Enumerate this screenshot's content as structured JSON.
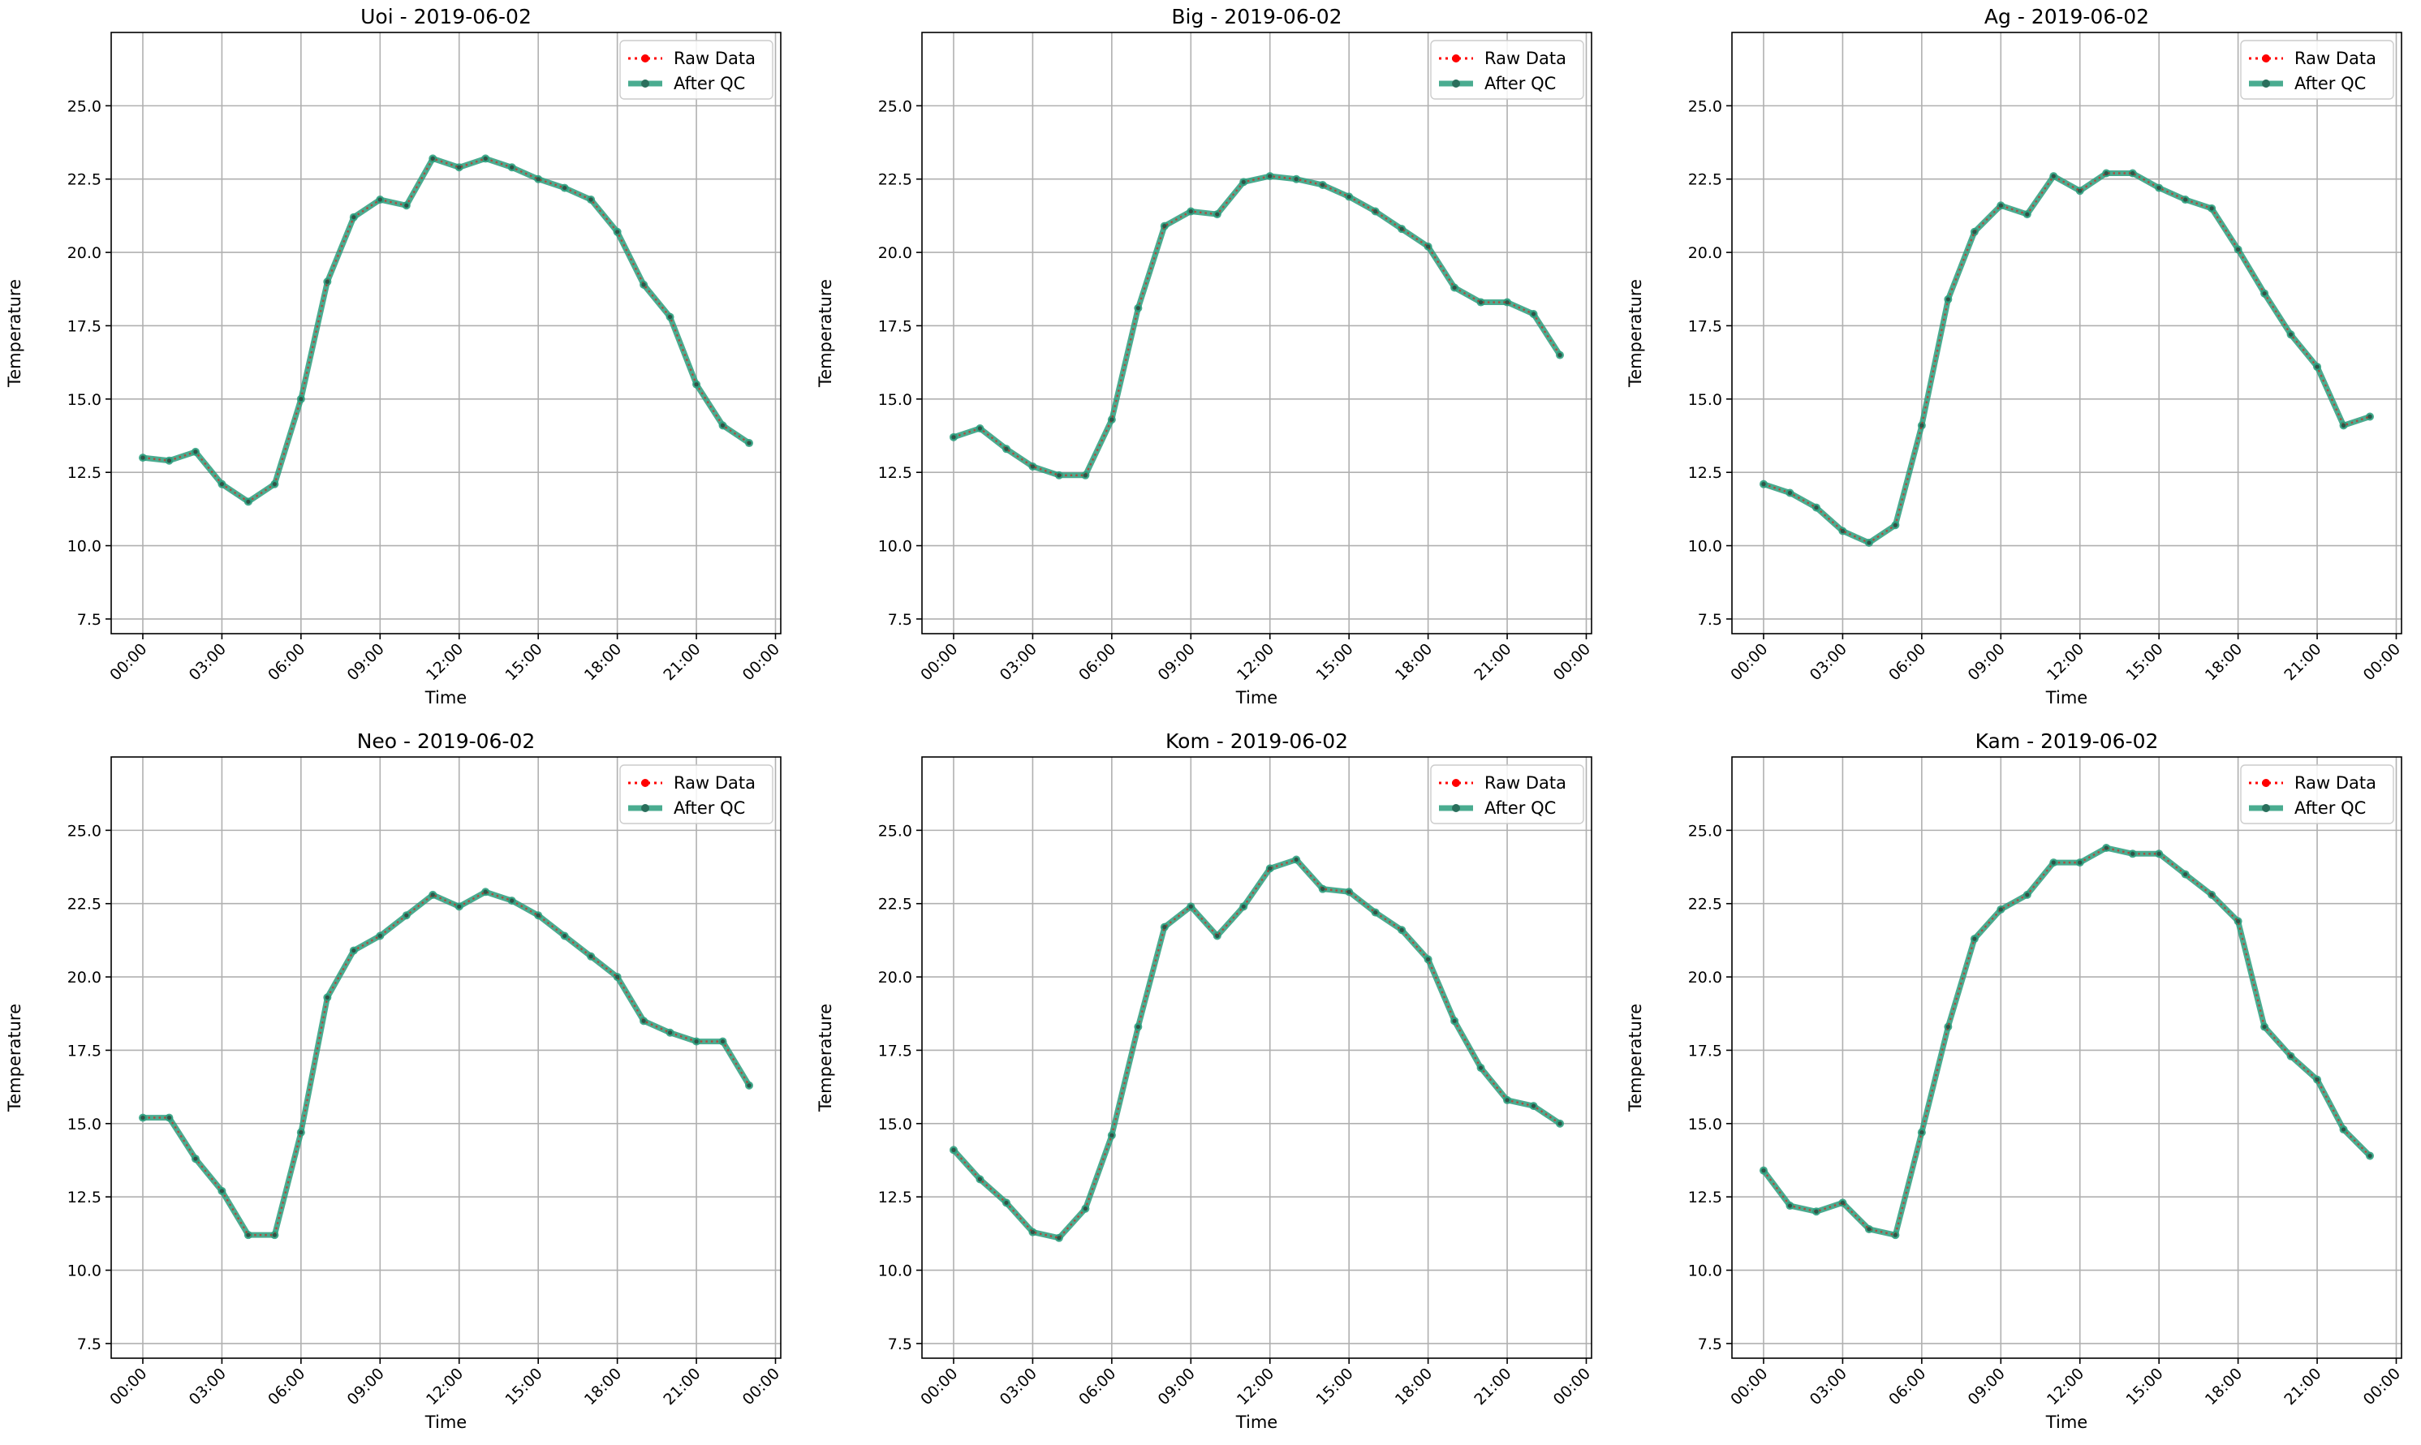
{
  "chart_data": [
    {
      "type": "line",
      "title": "Uoi - 2019-06-02",
      "xlabel": "Time",
      "ylabel": "Temperature",
      "ylim": [
        7,
        27.5
      ],
      "yticks": [
        7.5,
        10.0,
        12.5,
        15.0,
        17.5,
        20.0,
        22.5,
        25.0
      ],
      "ytick_labels": [
        "7.5",
        "10.0",
        "12.5",
        "15.0",
        "17.5",
        "20.0",
        "22.5",
        "25.0"
      ],
      "xlim_hours": [
        -1.2,
        24.2
      ],
      "xticks_hours": [
        0,
        3,
        6,
        9,
        12,
        15,
        18,
        21,
        24
      ],
      "xtick_labels": [
        "00:00",
        "03:00",
        "06:00",
        "09:00",
        "12:00",
        "15:00",
        "18:00",
        "21:00",
        "00:00"
      ],
      "x": [
        "00:00",
        "01:00",
        "02:00",
        "03:00",
        "04:00",
        "05:00",
        "06:00",
        "07:00",
        "08:00",
        "09:00",
        "10:00",
        "11:00",
        "12:00",
        "13:00",
        "14:00",
        "15:00",
        "16:00",
        "17:00",
        "18:00",
        "19:00",
        "20:00",
        "21:00",
        "22:00",
        "23:00"
      ],
      "legend_position": "top-right",
      "grid": true,
      "series": [
        {
          "name": "Raw Data",
          "color": "#ff0000",
          "values": [
            13.0,
            12.9,
            13.2,
            12.1,
            11.5,
            12.1,
            15.0,
            19.0,
            21.2,
            21.8,
            21.6,
            23.2,
            22.9,
            23.2,
            22.9,
            22.5,
            22.2,
            21.8,
            20.7,
            18.9,
            17.8,
            15.5,
            14.1,
            13.5
          ]
        },
        {
          "name": "After QC",
          "color": "#2a9d7c",
          "values": [
            13.0,
            12.9,
            13.2,
            12.1,
            11.5,
            12.1,
            15.0,
            19.0,
            21.2,
            21.8,
            21.6,
            23.2,
            22.9,
            23.2,
            22.9,
            22.5,
            22.2,
            21.8,
            20.7,
            18.9,
            17.8,
            15.5,
            14.1,
            13.5
          ]
        }
      ]
    },
    {
      "type": "line",
      "title": "Big - 2019-06-02",
      "xlabel": "Time",
      "ylabel": "Temperature",
      "ylim": [
        7,
        27.5
      ],
      "yticks": [
        7.5,
        10.0,
        12.5,
        15.0,
        17.5,
        20.0,
        22.5,
        25.0
      ],
      "ytick_labels": [
        "7.5",
        "10.0",
        "12.5",
        "15.0",
        "17.5",
        "20.0",
        "22.5",
        "25.0"
      ],
      "xlim_hours": [
        -1.2,
        24.2
      ],
      "xticks_hours": [
        0,
        3,
        6,
        9,
        12,
        15,
        18,
        21,
        24
      ],
      "xtick_labels": [
        "00:00",
        "03:00",
        "06:00",
        "09:00",
        "12:00",
        "15:00",
        "18:00",
        "21:00",
        "00:00"
      ],
      "x": [
        "00:00",
        "01:00",
        "02:00",
        "03:00",
        "04:00",
        "05:00",
        "06:00",
        "07:00",
        "08:00",
        "09:00",
        "10:00",
        "11:00",
        "12:00",
        "13:00",
        "14:00",
        "15:00",
        "16:00",
        "17:00",
        "18:00",
        "19:00",
        "20:00",
        "21:00",
        "22:00",
        "23:00"
      ],
      "legend_position": "top-right",
      "grid": true,
      "series": [
        {
          "name": "Raw Data",
          "color": "#ff0000",
          "values": [
            13.7,
            14.0,
            13.3,
            12.7,
            12.4,
            12.4,
            14.3,
            18.1,
            20.9,
            21.4,
            21.3,
            22.4,
            22.6,
            22.5,
            22.3,
            21.9,
            21.4,
            20.8,
            20.2,
            18.8,
            18.3,
            18.3,
            17.9,
            16.5
          ]
        },
        {
          "name": "After QC",
          "color": "#2a9d7c",
          "values": [
            13.7,
            14.0,
            13.3,
            12.7,
            12.4,
            12.4,
            14.3,
            18.1,
            20.9,
            21.4,
            21.3,
            22.4,
            22.6,
            22.5,
            22.3,
            21.9,
            21.4,
            20.8,
            20.2,
            18.8,
            18.3,
            18.3,
            17.9,
            16.5
          ]
        }
      ]
    },
    {
      "type": "line",
      "title": "Ag - 2019-06-02",
      "xlabel": "Time",
      "ylabel": "Temperature",
      "ylim": [
        7,
        27.5
      ],
      "yticks": [
        7.5,
        10.0,
        12.5,
        15.0,
        17.5,
        20.0,
        22.5,
        25.0
      ],
      "ytick_labels": [
        "7.5",
        "10.0",
        "12.5",
        "15.0",
        "17.5",
        "20.0",
        "22.5",
        "25.0"
      ],
      "xlim_hours": [
        -1.2,
        24.2
      ],
      "xticks_hours": [
        0,
        3,
        6,
        9,
        12,
        15,
        18,
        21,
        24
      ],
      "xtick_labels": [
        "00:00",
        "03:00",
        "06:00",
        "09:00",
        "12:00",
        "15:00",
        "18:00",
        "21:00",
        "00:00"
      ],
      "x": [
        "00:00",
        "01:00",
        "02:00",
        "03:00",
        "04:00",
        "05:00",
        "06:00",
        "07:00",
        "08:00",
        "09:00",
        "10:00",
        "11:00",
        "12:00",
        "13:00",
        "14:00",
        "15:00",
        "16:00",
        "17:00",
        "18:00",
        "19:00",
        "20:00",
        "21:00",
        "22:00",
        "23:00"
      ],
      "legend_position": "top-right",
      "grid": true,
      "series": [
        {
          "name": "Raw Data",
          "color": "#ff0000",
          "values": [
            12.1,
            11.8,
            11.3,
            10.5,
            10.1,
            10.7,
            14.1,
            18.4,
            20.7,
            21.6,
            21.3,
            22.6,
            22.1,
            22.7,
            22.7,
            22.2,
            21.8,
            21.5,
            20.1,
            18.6,
            17.2,
            16.1,
            14.1,
            14.4
          ]
        },
        {
          "name": "After QC",
          "color": "#2a9d7c",
          "values": [
            12.1,
            11.8,
            11.3,
            10.5,
            10.1,
            10.7,
            14.1,
            18.4,
            20.7,
            21.6,
            21.3,
            22.6,
            22.1,
            22.7,
            22.7,
            22.2,
            21.8,
            21.5,
            20.1,
            18.6,
            17.2,
            16.1,
            14.1,
            14.4
          ]
        }
      ]
    },
    {
      "type": "line",
      "title": "Neo - 2019-06-02",
      "xlabel": "Time",
      "ylabel": "Temperature",
      "ylim": [
        7,
        27.5
      ],
      "yticks": [
        7.5,
        10.0,
        12.5,
        15.0,
        17.5,
        20.0,
        22.5,
        25.0
      ],
      "ytick_labels": [
        "7.5",
        "10.0",
        "12.5",
        "15.0",
        "17.5",
        "20.0",
        "22.5",
        "25.0"
      ],
      "xlim_hours": [
        -1.2,
        24.2
      ],
      "xticks_hours": [
        0,
        3,
        6,
        9,
        12,
        15,
        18,
        21,
        24
      ],
      "xtick_labels": [
        "00:00",
        "03:00",
        "06:00",
        "09:00",
        "12:00",
        "15:00",
        "18:00",
        "21:00",
        "00:00"
      ],
      "x": [
        "00:00",
        "01:00",
        "02:00",
        "03:00",
        "04:00",
        "05:00",
        "06:00",
        "07:00",
        "08:00",
        "09:00",
        "10:00",
        "11:00",
        "12:00",
        "13:00",
        "14:00",
        "15:00",
        "16:00",
        "17:00",
        "18:00",
        "19:00",
        "20:00",
        "21:00",
        "22:00",
        "23:00"
      ],
      "legend_position": "top-right",
      "grid": true,
      "series": [
        {
          "name": "Raw Data",
          "color": "#ff0000",
          "values": [
            15.2,
            15.2,
            13.8,
            12.7,
            11.2,
            11.2,
            14.7,
            19.3,
            20.9,
            21.4,
            22.1,
            22.8,
            22.4,
            22.9,
            22.6,
            22.1,
            21.4,
            20.7,
            20.0,
            18.5,
            18.1,
            17.8,
            17.8,
            16.3
          ]
        },
        {
          "name": "After QC",
          "color": "#2a9d7c",
          "values": [
            15.2,
            15.2,
            13.8,
            12.7,
            11.2,
            11.2,
            14.7,
            19.3,
            20.9,
            21.4,
            22.1,
            22.8,
            22.4,
            22.9,
            22.6,
            22.1,
            21.4,
            20.7,
            20.0,
            18.5,
            18.1,
            17.8,
            17.8,
            16.3
          ]
        }
      ]
    },
    {
      "type": "line",
      "title": "Kom - 2019-06-02",
      "xlabel": "Time",
      "ylabel": "Temperature",
      "ylim": [
        7,
        27.5
      ],
      "yticks": [
        7.5,
        10.0,
        12.5,
        15.0,
        17.5,
        20.0,
        22.5,
        25.0
      ],
      "ytick_labels": [
        "7.5",
        "10.0",
        "12.5",
        "15.0",
        "17.5",
        "20.0",
        "22.5",
        "25.0"
      ],
      "xlim_hours": [
        -1.2,
        24.2
      ],
      "xticks_hours": [
        0,
        3,
        6,
        9,
        12,
        15,
        18,
        21,
        24
      ],
      "xtick_labels": [
        "00:00",
        "03:00",
        "06:00",
        "09:00",
        "12:00",
        "15:00",
        "18:00",
        "21:00",
        "00:00"
      ],
      "x": [
        "00:00",
        "01:00",
        "02:00",
        "03:00",
        "04:00",
        "05:00",
        "06:00",
        "07:00",
        "08:00",
        "09:00",
        "10:00",
        "11:00",
        "12:00",
        "13:00",
        "14:00",
        "15:00",
        "16:00",
        "17:00",
        "18:00",
        "19:00",
        "20:00",
        "21:00",
        "22:00",
        "23:00"
      ],
      "legend_position": "top-right",
      "grid": true,
      "series": [
        {
          "name": "Raw Data",
          "color": "#ff0000",
          "values": [
            14.1,
            13.1,
            12.3,
            11.3,
            11.1,
            12.1,
            14.6,
            18.3,
            21.7,
            22.4,
            21.4,
            22.4,
            23.7,
            24.0,
            23.0,
            22.9,
            22.2,
            21.6,
            20.6,
            18.5,
            16.9,
            15.8,
            15.6,
            15.0
          ]
        },
        {
          "name": "After QC",
          "color": "#2a9d7c",
          "values": [
            14.1,
            13.1,
            12.3,
            11.3,
            11.1,
            12.1,
            14.6,
            18.3,
            21.7,
            22.4,
            21.4,
            22.4,
            23.7,
            24.0,
            23.0,
            22.9,
            22.2,
            21.6,
            20.6,
            18.5,
            16.9,
            15.8,
            15.6,
            15.0
          ]
        }
      ]
    },
    {
      "type": "line",
      "title": "Kam - 2019-06-02",
      "xlabel": "Time",
      "ylabel": "Temperature",
      "ylim": [
        7,
        27.5
      ],
      "yticks": [
        7.5,
        10.0,
        12.5,
        15.0,
        17.5,
        20.0,
        22.5,
        25.0
      ],
      "ytick_labels": [
        "7.5",
        "10.0",
        "12.5",
        "15.0",
        "17.5",
        "20.0",
        "22.5",
        "25.0"
      ],
      "xlim_hours": [
        -1.2,
        24.2
      ],
      "xticks_hours": [
        0,
        3,
        6,
        9,
        12,
        15,
        18,
        21,
        24
      ],
      "xtick_labels": [
        "00:00",
        "03:00",
        "06:00",
        "09:00",
        "12:00",
        "15:00",
        "18:00",
        "21:00",
        "00:00"
      ],
      "x": [
        "00:00",
        "01:00",
        "02:00",
        "03:00",
        "04:00",
        "05:00",
        "06:00",
        "07:00",
        "08:00",
        "09:00",
        "10:00",
        "11:00",
        "12:00",
        "13:00",
        "14:00",
        "15:00",
        "16:00",
        "17:00",
        "18:00",
        "19:00",
        "20:00",
        "21:00",
        "22:00",
        "23:00"
      ],
      "legend_position": "top-right",
      "grid": true,
      "series": [
        {
          "name": "Raw Data",
          "color": "#ff0000",
          "values": [
            13.4,
            12.2,
            12.0,
            12.3,
            11.4,
            11.2,
            14.7,
            18.3,
            21.3,
            22.3,
            22.8,
            23.9,
            23.9,
            24.4,
            24.2,
            24.2,
            23.5,
            22.8,
            21.9,
            18.3,
            17.3,
            16.5,
            14.8,
            13.9
          ]
        },
        {
          "name": "After QC",
          "color": "#2a9d7c",
          "values": [
            13.4,
            12.2,
            12.0,
            12.3,
            11.4,
            11.2,
            14.7,
            18.3,
            21.3,
            22.3,
            22.8,
            23.9,
            23.9,
            24.4,
            24.2,
            24.2,
            23.5,
            22.8,
            21.9,
            18.3,
            17.3,
            16.5,
            14.8,
            13.9
          ]
        }
      ]
    }
  ]
}
